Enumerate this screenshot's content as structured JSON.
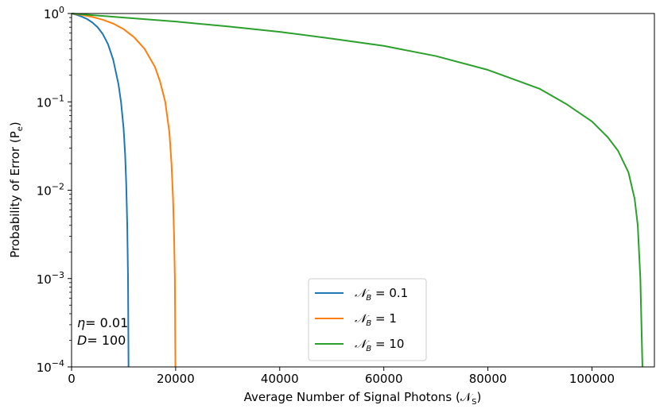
{
  "chart_data": {
    "type": "line",
    "xlabel": "Average Number of Signal Photons (𝒩",
    "xlabel_sub": "S",
    "xlabel_end": ")",
    "ylabel": "Probability of Error (P",
    "ylabel_sub": "e",
    "ylabel_end": ")",
    "xlim": [
      0,
      112000
    ],
    "ylim": [
      0.0001,
      1
    ],
    "yscale": "log",
    "xticks": [
      0,
      20000,
      40000,
      60000,
      80000,
      100000
    ],
    "xtick_labels": [
      "0",
      "20000",
      "40000",
      "60000",
      "80000",
      "100000"
    ],
    "yticks": [
      {
        "value": 1,
        "base": "10",
        "exp": "0"
      },
      {
        "value": 0.1,
        "base": "10",
        "exp": "−1"
      },
      {
        "value": 0.01,
        "base": "10",
        "exp": "−2"
      },
      {
        "value": 0.001,
        "base": "10",
        "exp": "−3"
      },
      {
        "value": 0.0001,
        "base": "10",
        "exp": "−4"
      }
    ],
    "series": [
      {
        "name": "𝒩",
        "sub": "B",
        "eq": " = 0.1",
        "color": "#1f77b4",
        "points": [
          [
            0,
            1
          ],
          [
            1000,
            0.965
          ],
          [
            2000,
            0.92
          ],
          [
            3000,
            0.865
          ],
          [
            4000,
            0.79
          ],
          [
            5000,
            0.7
          ],
          [
            6000,
            0.585
          ],
          [
            7000,
            0.45
          ],
          [
            8000,
            0.3
          ],
          [
            9000,
            0.16
          ],
          [
            9500,
            0.1
          ],
          [
            10000,
            0.05
          ],
          [
            10300,
            0.025
          ],
          [
            10500,
            0.012
          ],
          [
            10700,
            0.004
          ],
          [
            10850,
            0.001
          ],
          [
            10950,
            0.0001
          ]
        ]
      },
      {
        "name": "𝒩",
        "sub": "B",
        "eq": " = 1",
        "color": "#ff7f0e",
        "points": [
          [
            0,
            1
          ],
          [
            2000,
            0.965
          ],
          [
            4000,
            0.915
          ],
          [
            6000,
            0.85
          ],
          [
            8000,
            0.77
          ],
          [
            10000,
            0.665
          ],
          [
            12000,
            0.54
          ],
          [
            14000,
            0.4
          ],
          [
            16000,
            0.25
          ],
          [
            17000,
            0.17
          ],
          [
            18000,
            0.1
          ],
          [
            18800,
            0.045
          ],
          [
            19200,
            0.02
          ],
          [
            19500,
            0.008
          ],
          [
            19700,
            0.003
          ],
          [
            19850,
            0.001
          ],
          [
            19950,
            0.0001
          ]
        ]
      },
      {
        "name": "𝒩",
        "sub": "B",
        "eq": " = 10",
        "color": "#2ca02c",
        "points": [
          [
            0,
            1
          ],
          [
            10000,
            0.9
          ],
          [
            20000,
            0.81
          ],
          [
            30000,
            0.715
          ],
          [
            40000,
            0.62
          ],
          [
            50000,
            0.52
          ],
          [
            60000,
            0.43
          ],
          [
            70000,
            0.33
          ],
          [
            80000,
            0.23
          ],
          [
            90000,
            0.14
          ],
          [
            95000,
            0.095
          ],
          [
            100000,
            0.06
          ],
          [
            103000,
            0.04
          ],
          [
            105000,
            0.028
          ],
          [
            107000,
            0.016
          ],
          [
            108200,
            0.008
          ],
          [
            108800,
            0.004
          ],
          [
            109300,
            0.001
          ],
          [
            109700,
            0.0001
          ]
        ]
      }
    ],
    "legend_position": "lower-center",
    "annotations": [
      {
        "var": "η",
        "text": "= 0.01"
      },
      {
        "var": "D",
        "text": "= 100"
      }
    ],
    "grid": false
  }
}
